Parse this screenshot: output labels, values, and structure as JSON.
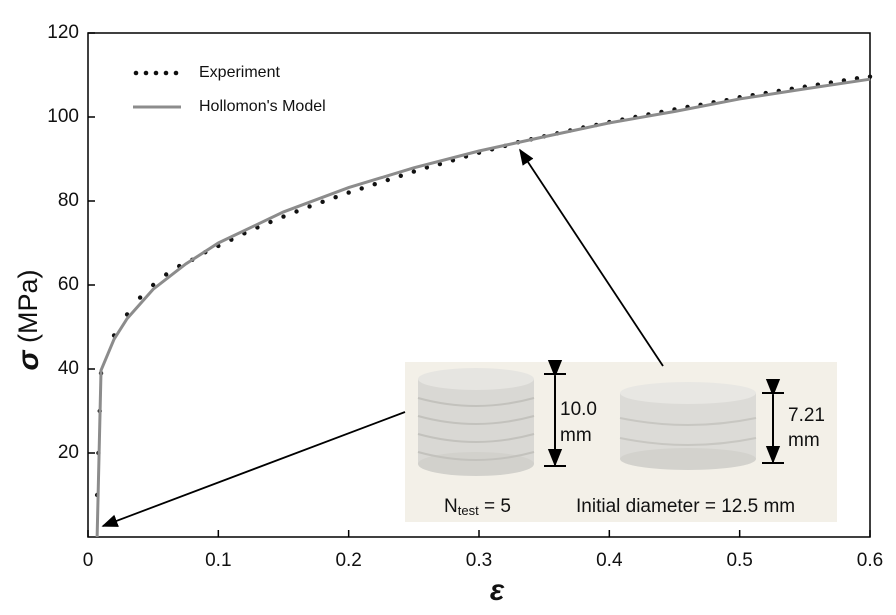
{
  "chart_data": {
    "type": "line",
    "x_label": [
      "ε"
    ],
    "y_label": [
      "σ",
      " (MPa)"
    ],
    "xlim": [
      0,
      0.6
    ],
    "xticks": [
      0,
      0.1,
      0.2,
      0.3,
      0.4,
      0.5,
      0.6
    ],
    "ylim": [
      0,
      120
    ],
    "yticks": [
      20,
      40,
      60,
      80,
      100,
      120
    ],
    "legend": "upper left",
    "series": [
      {
        "name": "Experiment",
        "color": "#111111",
        "mode": "markers",
        "x": [
          0.007,
          0.008,
          0.009,
          0.01,
          0.02,
          0.03,
          0.04,
          0.05,
          0.06,
          0.07,
          0.08,
          0.09,
          0.1,
          0.11,
          0.12,
          0.13,
          0.14,
          0.15,
          0.16,
          0.17,
          0.18,
          0.19,
          0.2,
          0.21,
          0.22,
          0.23,
          0.24,
          0.25,
          0.26,
          0.27,
          0.28,
          0.29,
          0.3,
          0.31,
          0.32,
          0.33,
          0.34,
          0.35,
          0.36,
          0.37,
          0.38,
          0.39,
          0.4,
          0.41,
          0.42,
          0.43,
          0.44,
          0.45,
          0.46,
          0.47,
          0.48,
          0.49,
          0.5,
          0.51,
          0.52,
          0.53,
          0.54,
          0.55,
          0.56,
          0.57,
          0.58,
          0.59,
          0.6
        ],
        "values": [
          10,
          20,
          30,
          39,
          48,
          53,
          57,
          60,
          62.5,
          64.5,
          66,
          67.8,
          69.3,
          70.8,
          72.3,
          73.7,
          75,
          76.3,
          77.5,
          78.7,
          79.8,
          80.9,
          82,
          83,
          84,
          85,
          86,
          87,
          88,
          88.8,
          89.7,
          90.6,
          91.5,
          92.3,
          93.1,
          94,
          94.7,
          95.4,
          96.1,
          96.8,
          97.5,
          98.1,
          98.8,
          99.4,
          100,
          100.6,
          101.2,
          101.8,
          102.4,
          102.9,
          103.5,
          104,
          104.7,
          105.2,
          105.7,
          106.2,
          106.7,
          107.2,
          107.7,
          108.2,
          108.7,
          109.2,
          109.6
        ]
      },
      {
        "name": "Hollomon's Model",
        "color": "#8c8c8c",
        "mode": "line",
        "x": [
          0.007,
          0.01,
          0.02,
          0.03,
          0.05,
          0.075,
          0.1,
          0.15,
          0.2,
          0.25,
          0.3,
          0.35,
          0.4,
          0.45,
          0.5,
          0.55,
          0.6
        ],
        "values": [
          0,
          39.7,
          47.1,
          52,
          59,
          65,
          70,
          77.4,
          83.2,
          87.9,
          91.9,
          95.3,
          98.6,
          101.3,
          104.3,
          106.7,
          109
        ]
      }
    ],
    "annotations": {
      "height_a": [
        "10.0",
        "mm"
      ],
      "height_b": [
        "7.21",
        "mm"
      ],
      "count": {
        "main": "N",
        "sub": "test",
        "tail": " = 5"
      },
      "diameter": "Initial diameter = 12.5 mm"
    }
  }
}
